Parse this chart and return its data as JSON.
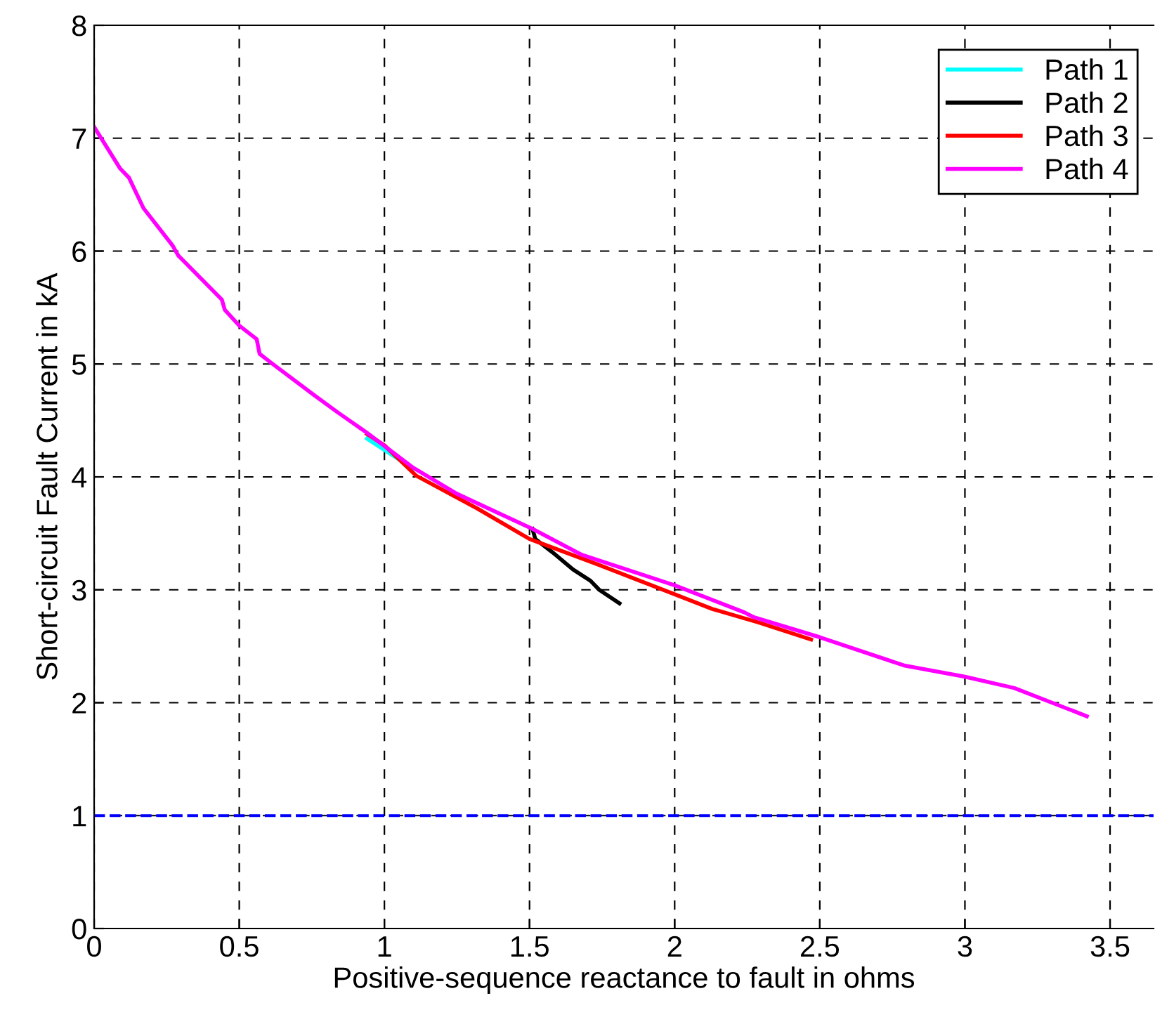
{
  "chart_data": {
    "type": "line",
    "xlabel": "Positive-sequence reactance to fault in ohms",
    "ylabel": "Short-circuit Fault Current in kA",
    "xlim": [
      0,
      3.65
    ],
    "xticks": [
      0,
      0.5,
      1,
      1.5,
      2,
      2.5,
      3,
      3.5
    ],
    "ylim": [
      0,
      8
    ],
    "yticks": [
      0,
      1,
      2,
      3,
      4,
      5,
      6,
      7,
      8
    ],
    "grid": true,
    "legend": "top right",
    "line_style": "solid",
    "marker": "none",
    "ref_lines": [
      {
        "axis": "y",
        "value": 1,
        "label": null,
        "color": "#0000ff",
        "line_style": "dashed"
      }
    ],
    "series": [
      {
        "name": "Path 1",
        "color": "#00ffff",
        "x": [
          0.94,
          1.1
        ],
        "values": [
          4.34,
          4.07
        ]
      },
      {
        "name": "Path 2",
        "color": "#000000",
        "x": [
          1.51,
          1.52,
          1.58,
          1.65,
          1.71,
          1.74,
          1.81
        ],
        "values": [
          3.54,
          3.45,
          3.33,
          3.18,
          3.08,
          3.0,
          2.88
        ]
      },
      {
        "name": "Path 3",
        "color": "#ff0000",
        "x": [
          0.94,
          1.0,
          1.11,
          1.32,
          1.5,
          1.73,
          2.0,
          2.13,
          2.29,
          2.47
        ],
        "values": [
          4.38,
          4.28,
          4.01,
          3.72,
          3.45,
          3.23,
          2.96,
          2.83,
          2.71,
          2.56
        ]
      },
      {
        "name": "Path 4",
        "color": "#ff00ff",
        "x": [
          0.0,
          0.09,
          0.12,
          0.17,
          0.27,
          0.29,
          0.44,
          0.45,
          0.5,
          0.56,
          0.57,
          0.61,
          0.76,
          0.84,
          0.94,
          1.1,
          1.25,
          1.51,
          1.68,
          2.0,
          2.24,
          2.27,
          2.5,
          2.79,
          3.0,
          3.17,
          3.42
        ],
        "values": [
          7.1,
          6.73,
          6.65,
          6.38,
          6.05,
          5.96,
          5.57,
          5.48,
          5.34,
          5.22,
          5.09,
          5.01,
          4.72,
          4.57,
          4.39,
          4.08,
          3.85,
          3.54,
          3.31,
          3.04,
          2.8,
          2.76,
          2.58,
          2.33,
          2.23,
          2.13,
          1.88
        ]
      }
    ]
  }
}
